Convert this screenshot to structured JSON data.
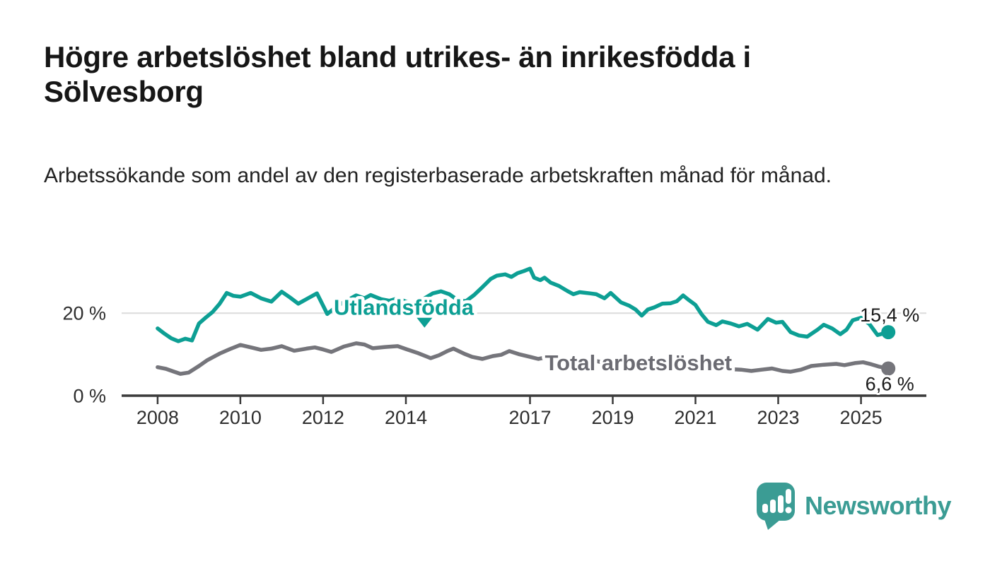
{
  "chart_data": {
    "type": "line",
    "title": "Högre arbetslöshet bland utrikes- än inrikesfödda i Sölvesborg",
    "subtitle": "Arbetssökande som andel av den registerbaserade arbetskraften månad för månad.",
    "unit": "%",
    "grid": "horizontal-only",
    "legend_position": "inline-labels",
    "xlim": [
      2007.13,
      2026.58
    ],
    "ylim": [
      0,
      32.2
    ],
    "grid_values": [
      20
    ],
    "y_ticks": [
      {
        "value": 0,
        "label": "0 %"
      },
      {
        "value": 20,
        "label": "20 %"
      }
    ],
    "x_ticks": [
      {
        "value": 2008,
        "label": "2008"
      },
      {
        "value": 2010,
        "label": "2010"
      },
      {
        "value": 2012,
        "label": "2012"
      },
      {
        "value": 2014,
        "label": "2014"
      },
      {
        "value": 2017,
        "label": "2017"
      },
      {
        "value": 2019,
        "label": "2019"
      },
      {
        "value": 2021,
        "label": "2021"
      },
      {
        "value": 2023,
        "label": "2023"
      },
      {
        "value": 2025,
        "label": "2025"
      }
    ],
    "series": [
      {
        "name": "Total arbetslöshet",
        "color": "#75757B",
        "end_label": "6,6 %",
        "end_value": 6.6,
        "end_label_position": "below",
        "points": [
          [
            2008.0,
            6.9
          ],
          [
            2008.2,
            6.5
          ],
          [
            2008.4,
            5.8
          ],
          [
            2008.55,
            5.3
          ],
          [
            2008.75,
            5.6
          ],
          [
            2009.0,
            7.2
          ],
          [
            2009.2,
            8.6
          ],
          [
            2009.5,
            10.2
          ],
          [
            2009.75,
            11.3
          ],
          [
            2010.0,
            12.3
          ],
          [
            2010.3,
            11.6
          ],
          [
            2010.5,
            11.1
          ],
          [
            2010.75,
            11.4
          ],
          [
            2011.0,
            12.0
          ],
          [
            2011.3,
            10.9
          ],
          [
            2011.6,
            11.4
          ],
          [
            2011.8,
            11.7
          ],
          [
            2012.0,
            11.2
          ],
          [
            2012.2,
            10.6
          ],
          [
            2012.5,
            11.9
          ],
          [
            2012.8,
            12.7
          ],
          [
            2013.0,
            12.4
          ],
          [
            2013.2,
            11.5
          ],
          [
            2013.5,
            11.8
          ],
          [
            2013.8,
            12.0
          ],
          [
            2014.0,
            11.3
          ],
          [
            2014.3,
            10.3
          ],
          [
            2014.6,
            9.1
          ],
          [
            2014.8,
            9.8
          ],
          [
            2015.0,
            10.8
          ],
          [
            2015.15,
            11.4
          ],
          [
            2015.4,
            10.2
          ],
          [
            2015.6,
            9.4
          ],
          [
            2015.85,
            8.9
          ],
          [
            2016.1,
            9.6
          ],
          [
            2016.3,
            9.9
          ],
          [
            2016.5,
            10.8
          ],
          [
            2016.75,
            10.0
          ],
          [
            2017.0,
            9.4
          ],
          [
            2017.2,
            8.9
          ],
          [
            2017.45,
            9.4
          ],
          [
            2017.7,
            9.0
          ],
          [
            2018.0,
            8.5
          ],
          [
            2018.3,
            8.2
          ],
          [
            2018.6,
            8.4
          ],
          [
            2018.9,
            7.8
          ],
          [
            2019.2,
            7.5
          ],
          [
            2019.5,
            7.1
          ],
          [
            2019.8,
            7.4
          ],
          [
            2020.1,
            8.2
          ],
          [
            2020.4,
            8.0
          ],
          [
            2020.7,
            7.7
          ],
          [
            2021.0,
            7.2
          ],
          [
            2021.3,
            6.8
          ],
          [
            2021.6,
            6.6
          ],
          [
            2021.9,
            6.4
          ],
          [
            2022.1,
            6.3
          ],
          [
            2022.35,
            6.0
          ],
          [
            2022.6,
            6.3
          ],
          [
            2022.85,
            6.6
          ],
          [
            2023.1,
            6.0
          ],
          [
            2023.3,
            5.8
          ],
          [
            2023.55,
            6.3
          ],
          [
            2023.8,
            7.2
          ],
          [
            2024.1,
            7.5
          ],
          [
            2024.4,
            7.7
          ],
          [
            2024.6,
            7.4
          ],
          [
            2024.85,
            7.9
          ],
          [
            2025.05,
            8.1
          ],
          [
            2025.25,
            7.6
          ],
          [
            2025.45,
            7.0
          ],
          [
            2025.66,
            6.6
          ]
        ]
      },
      {
        "name": "Utlandsfödda",
        "color": "#0D9F94",
        "end_label": "15,4 %",
        "end_value": 15.4,
        "end_label_position": "above",
        "points": [
          [
            2008.0,
            16.3
          ],
          [
            2008.17,
            15.0
          ],
          [
            2008.33,
            13.9
          ],
          [
            2008.5,
            13.2
          ],
          [
            2008.67,
            13.8
          ],
          [
            2008.83,
            13.4
          ],
          [
            2009.0,
            17.5
          ],
          [
            2009.17,
            19.0
          ],
          [
            2009.33,
            20.3
          ],
          [
            2009.5,
            22.3
          ],
          [
            2009.67,
            24.9
          ],
          [
            2009.83,
            24.2
          ],
          [
            2010.0,
            24.0
          ],
          [
            2010.25,
            24.9
          ],
          [
            2010.5,
            23.6
          ],
          [
            2010.75,
            22.8
          ],
          [
            2011.0,
            25.2
          ],
          [
            2011.2,
            23.8
          ],
          [
            2011.4,
            22.3
          ],
          [
            2011.65,
            23.7
          ],
          [
            2011.85,
            24.8
          ],
          [
            2012.1,
            19.8
          ],
          [
            2012.35,
            21.8
          ],
          [
            2012.6,
            23.2
          ],
          [
            2012.8,
            24.3
          ],
          [
            2013.0,
            23.6
          ],
          [
            2013.15,
            24.4
          ],
          [
            2013.4,
            23.4
          ],
          [
            2013.6,
            23.0
          ],
          [
            2013.8,
            23.6
          ],
          [
            2014.0,
            22.8
          ],
          [
            2014.2,
            22.2
          ],
          [
            2014.4,
            23.3
          ],
          [
            2014.65,
            24.8
          ],
          [
            2014.85,
            25.3
          ],
          [
            2015.05,
            24.6
          ],
          [
            2015.25,
            23.2
          ],
          [
            2015.45,
            22.9
          ],
          [
            2015.65,
            24.4
          ],
          [
            2015.85,
            26.3
          ],
          [
            2016.05,
            28.3
          ],
          [
            2016.2,
            29.1
          ],
          [
            2016.4,
            29.4
          ],
          [
            2016.55,
            28.8
          ],
          [
            2016.7,
            29.7
          ],
          [
            2016.85,
            30.2
          ],
          [
            2017.0,
            30.8
          ],
          [
            2017.1,
            28.6
          ],
          [
            2017.25,
            28.0
          ],
          [
            2017.35,
            28.6
          ],
          [
            2017.5,
            27.4
          ],
          [
            2017.7,
            26.6
          ],
          [
            2017.9,
            25.4
          ],
          [
            2018.05,
            24.6
          ],
          [
            2018.2,
            25.1
          ],
          [
            2018.45,
            24.8
          ],
          [
            2018.6,
            24.6
          ],
          [
            2018.8,
            23.6
          ],
          [
            2018.95,
            24.9
          ],
          [
            2019.2,
            22.6
          ],
          [
            2019.4,
            21.8
          ],
          [
            2019.55,
            20.9
          ],
          [
            2019.7,
            19.4
          ],
          [
            2019.85,
            20.9
          ],
          [
            2020.0,
            21.4
          ],
          [
            2020.2,
            22.3
          ],
          [
            2020.4,
            22.4
          ],
          [
            2020.55,
            22.9
          ],
          [
            2020.7,
            24.3
          ],
          [
            2020.85,
            23.1
          ],
          [
            2021.0,
            22.0
          ],
          [
            2021.15,
            19.7
          ],
          [
            2021.3,
            17.9
          ],
          [
            2021.5,
            17.1
          ],
          [
            2021.65,
            18.0
          ],
          [
            2021.85,
            17.5
          ],
          [
            2022.05,
            16.8
          ],
          [
            2022.25,
            17.4
          ],
          [
            2022.5,
            16.0
          ],
          [
            2022.75,
            18.6
          ],
          [
            2022.95,
            17.7
          ],
          [
            2023.1,
            17.9
          ],
          [
            2023.3,
            15.4
          ],
          [
            2023.5,
            14.6
          ],
          [
            2023.7,
            14.3
          ],
          [
            2023.95,
            16.0
          ],
          [
            2024.1,
            17.2
          ],
          [
            2024.3,
            16.3
          ],
          [
            2024.5,
            14.9
          ],
          [
            2024.65,
            16.0
          ],
          [
            2024.8,
            18.3
          ],
          [
            2025.0,
            18.9
          ],
          [
            2025.2,
            17.4
          ],
          [
            2025.4,
            14.7
          ],
          [
            2025.66,
            15.4
          ]
        ]
      }
    ],
    "annotations": [
      {
        "text": "Utlandsfödda",
        "x": 2013.95,
        "y": 21.3,
        "color": "#0D9F94",
        "arrow": {
          "x": 2014.45,
          "from": 18.9,
          "to": 16.5
        }
      },
      {
        "text": "Total arbetslöshet",
        "x": 2019.62,
        "y": 7.9,
        "color": "#6B6B72"
      }
    ]
  },
  "footer": {
    "brand": "Newsworthy"
  },
  "colors": {
    "accent_teal": "#0D9F94",
    "line_gray": "#75757B",
    "label_gray": "#6B6B72",
    "grid": "#DCDCDC",
    "axis": "#3A3A3A",
    "tick_text": "#2E2E2E",
    "value_label": "#1A1A1A",
    "logo_teal": "#3B9C94",
    "background": "#FFFFFF"
  }
}
